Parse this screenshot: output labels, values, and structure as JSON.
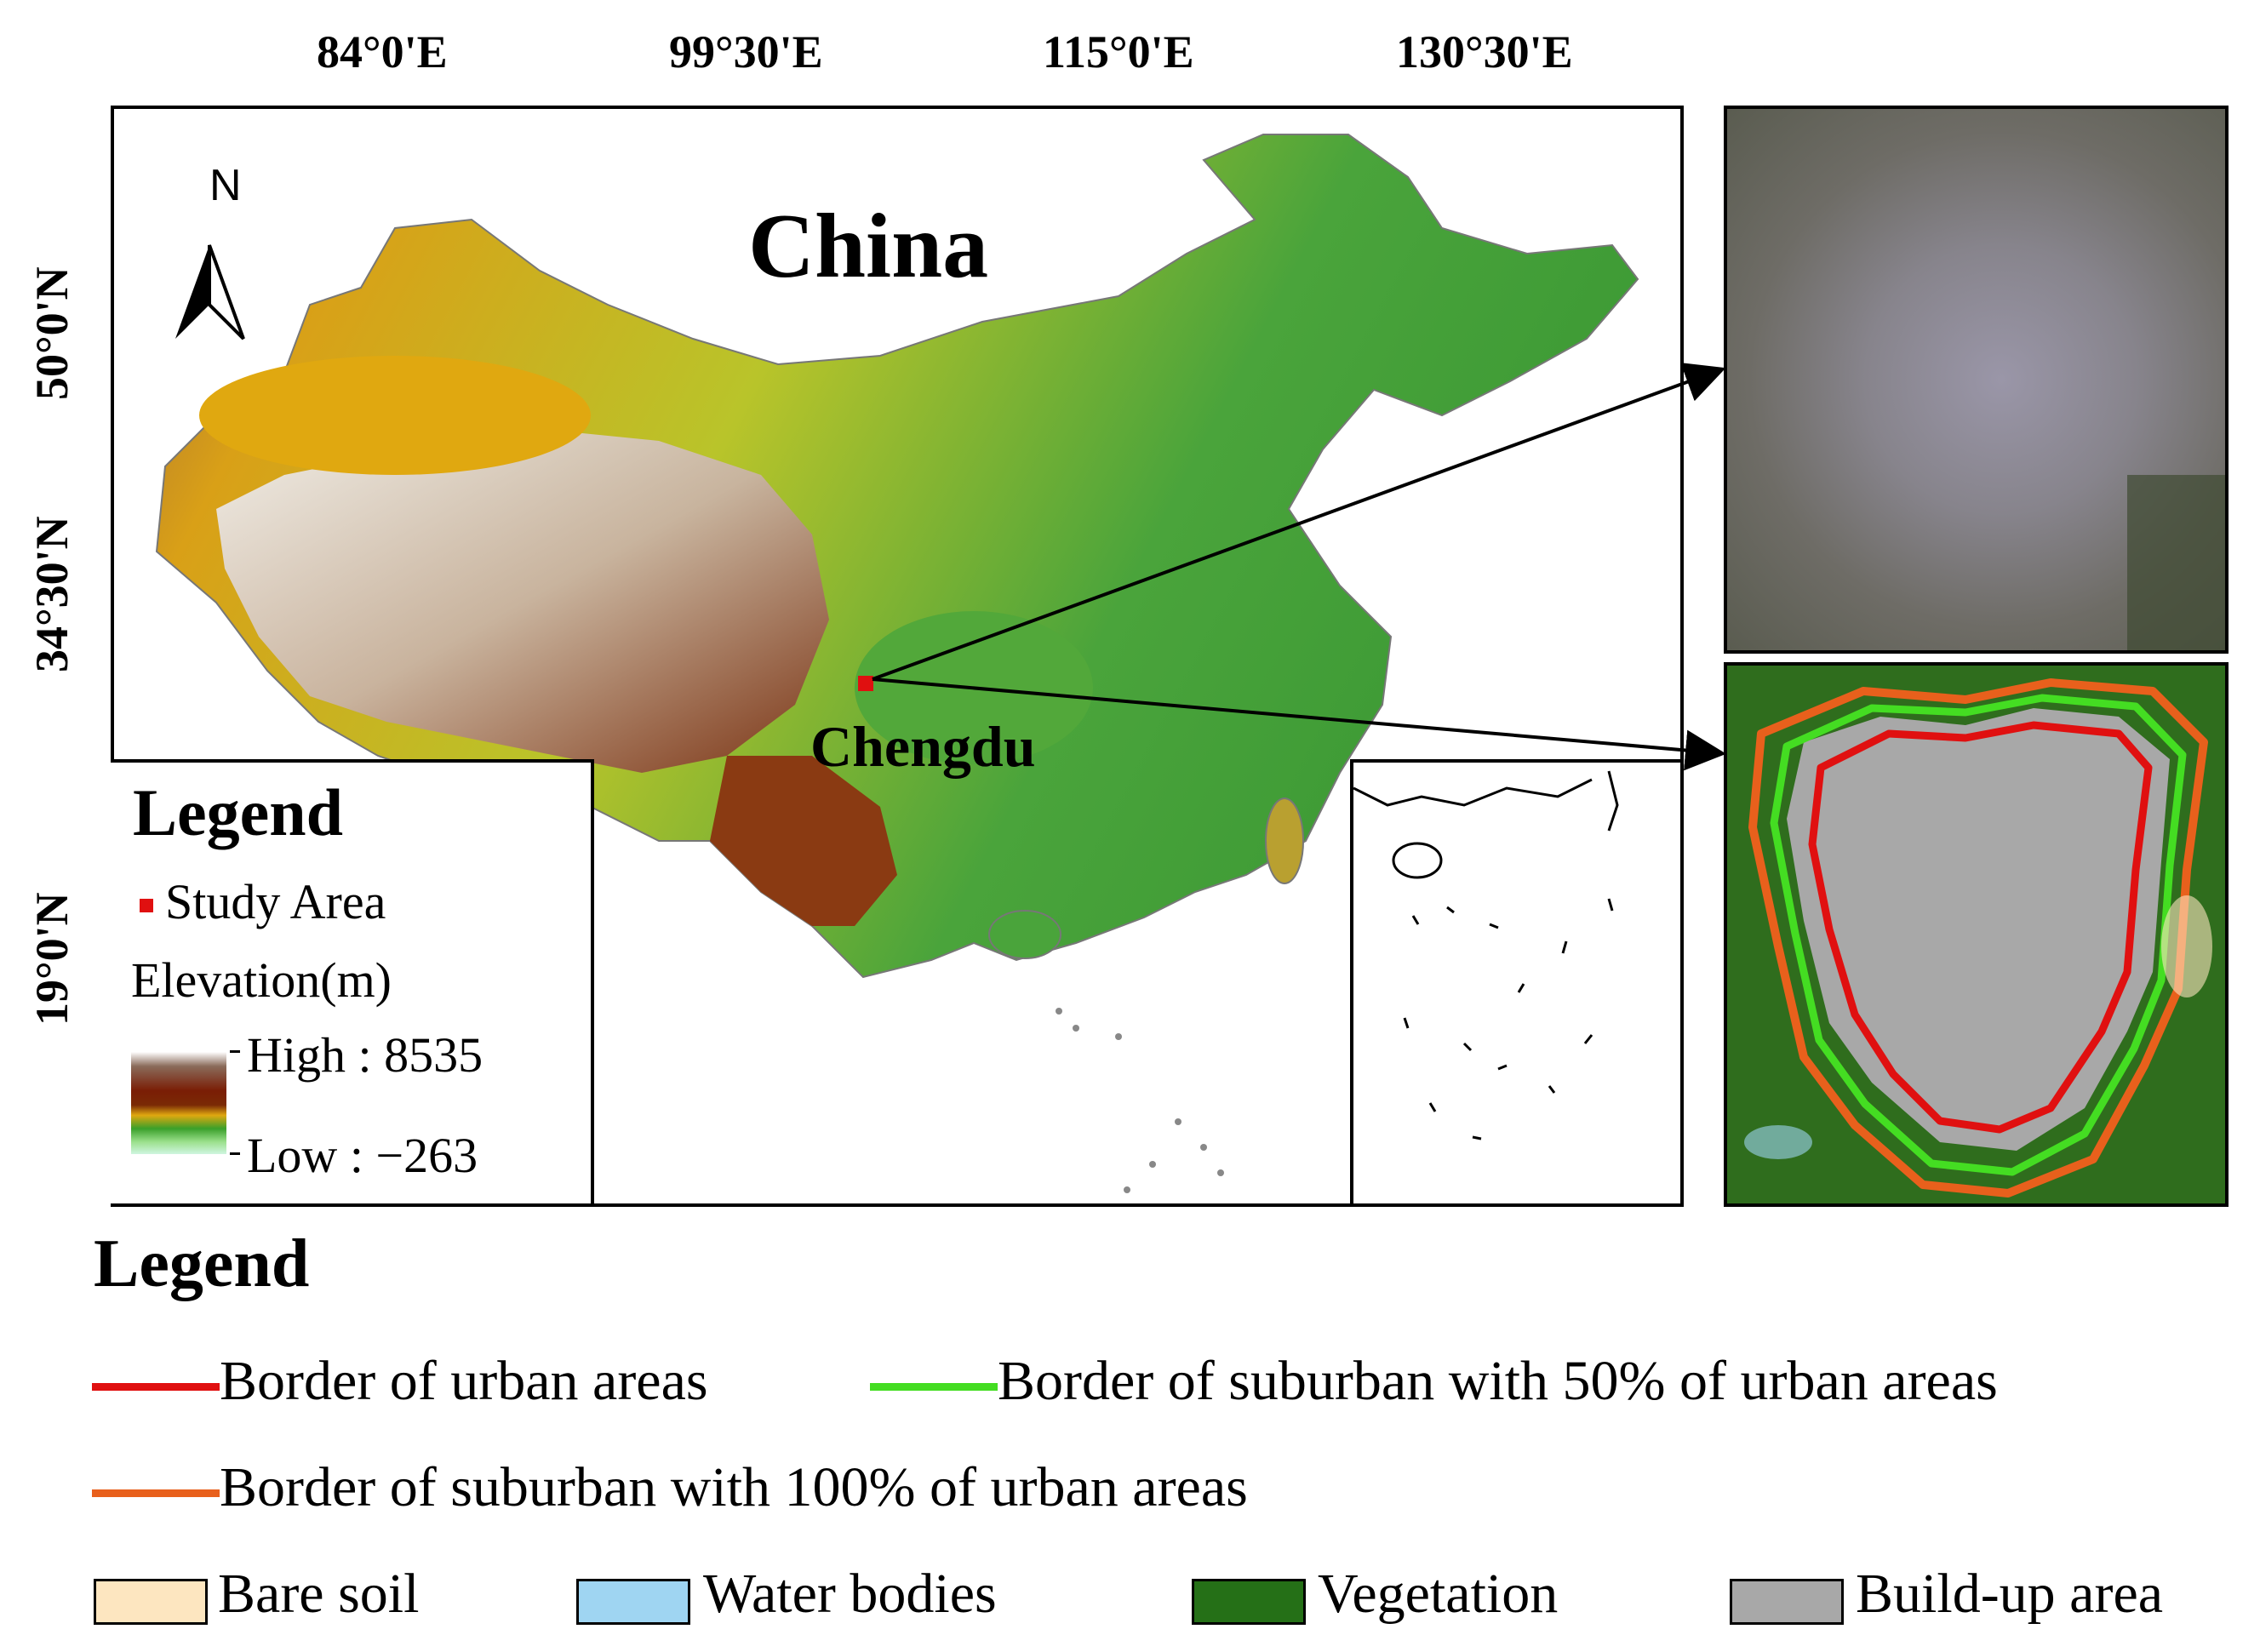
{
  "ticks": {
    "longitude": [
      "84°0'E",
      "99°30'E",
      "115°0'E",
      "130°30'E"
    ],
    "latitude": [
      "50°0'N",
      "34°30'N",
      "19°0'N"
    ]
  },
  "map": {
    "title": "China",
    "north": "N",
    "place_label": "Chengdu"
  },
  "inset_legend": {
    "title": "Legend",
    "study_area": "Study Area",
    "elevation": "Elevation(m)",
    "high": "High : 8535",
    "low": "Low : −263",
    "study_area_color": "#e01010"
  },
  "bottom_legend": {
    "title": "Legend",
    "lines": [
      {
        "label": "Border of urban areas",
        "color": "#e01010"
      },
      {
        "label": "Border of suburban with 50% of urban areas",
        "color": "#44dd22"
      },
      {
        "label": "Border of suburban with 100% of urban areas",
        "color": "#e8601c"
      }
    ],
    "classes": [
      {
        "label": "Bare soil",
        "color": "#fde6c0"
      },
      {
        "label": "Water bodies",
        "color": "#9fd5f2"
      },
      {
        "label": "Vegetation",
        "color": "#257017"
      },
      {
        "label": "Build-up area",
        "color": "#a8a8a8"
      }
    ]
  }
}
